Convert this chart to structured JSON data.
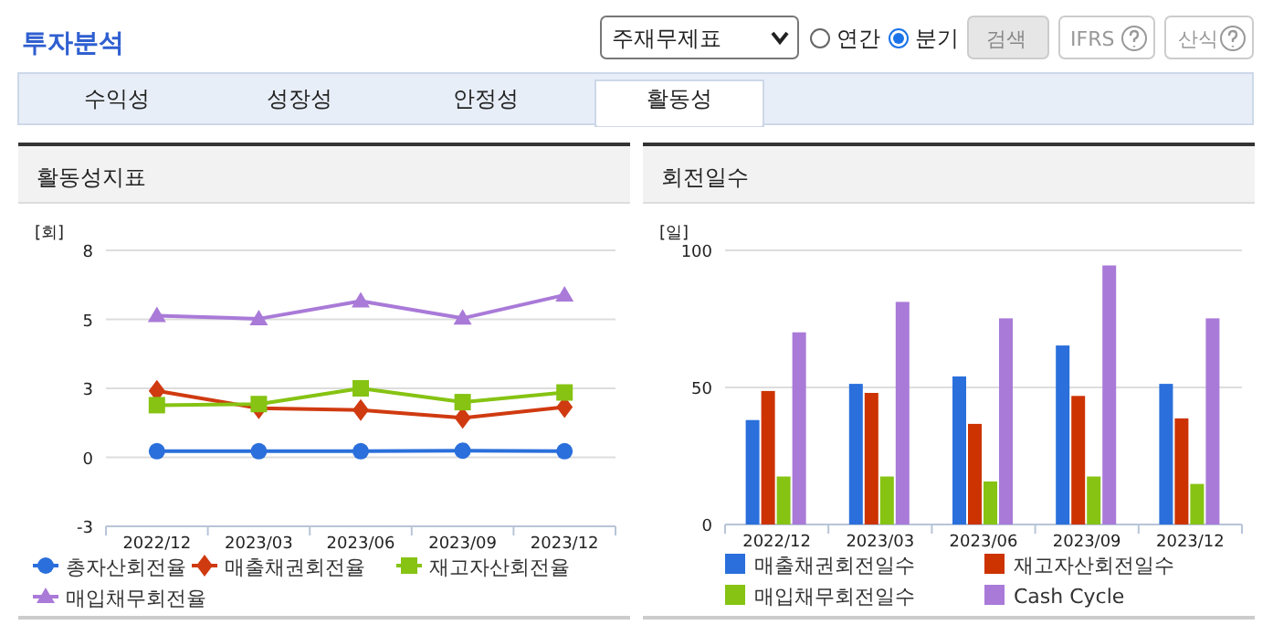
{
  "chart_data": [
    {
      "type": "other",
      "title": "투자분석",
      "annotations": [
        "주재무제표",
        "연간",
        "분기",
        "검색",
        "IFRS",
        "산식",
        "수익성",
        "성장성",
        "안정성",
        "활동성"
      ]
    },
    {
      "type": "line",
      "title": "활동성지표",
      "ylabel": "[회]",
      "categories": [
        "2022/12",
        "2023/03",
        "2023/06",
        "2023/09",
        "2023/12"
      ],
      "ylim": [
        -2.5,
        7.5
      ],
      "yticks": [
        {
          "value": -2.5,
          "label": "-3"
        },
        0,
        {
          "value": 2.5,
          "label": "3"
        },
        5,
        {
          "value": 7.5,
          "label": "8"
        }
      ],
      "grid": "y",
      "legend": "bottom",
      "series": [
        {
          "name": "총자산회전율",
          "color": "#2a6fdb",
          "marker": "circle",
          "values": [
            0.22,
            0.22,
            0.22,
            0.24,
            0.22
          ]
        },
        {
          "name": "매출채권회전율",
          "color": "#d03a10",
          "marker": "diamond",
          "values": [
            2.41,
            1.78,
            1.71,
            1.43,
            1.82
          ]
        },
        {
          "name": "재고자산회전율",
          "color": "#86c313",
          "marker": "square",
          "values": [
            1.89,
            1.93,
            2.5,
            2.0,
            2.35
          ]
        },
        {
          "name": "매입채무회전율",
          "color": "#a97ad8",
          "marker": "triangle",
          "values": [
            5.13,
            5.02,
            5.66,
            5.04,
            5.88
          ]
        }
      ]
    },
    {
      "type": "bar",
      "title": "회전일수",
      "ylabel": "[일]",
      "categories": [
        "2022/12",
        "2023/03",
        "2023/06",
        "2023/09",
        "2023/12"
      ],
      "ylim": [
        0,
        100
      ],
      "yticks": [
        0,
        50,
        100
      ],
      "grid": "y",
      "legend": "bottom",
      "series": [
        {
          "name": "매출채권회전일수",
          "color": "#2a6fdb",
          "values": [
            38.1,
            51.3,
            54.0,
            65.3,
            51.3
          ]
        },
        {
          "name": "재고자산회전일수",
          "color": "#cc3300",
          "values": [
            48.7,
            48.0,
            36.7,
            46.9,
            38.7
          ]
        },
        {
          "name": "매입채무회전일수",
          "color": "#86c313",
          "values": [
            17.5,
            17.5,
            15.7,
            17.5,
            14.8
          ]
        },
        {
          "name": "Cash Cycle",
          "color": "#a97ad8",
          "values": [
            70.1,
            81.2,
            75.2,
            94.5,
            75.2
          ]
        }
      ]
    }
  ]
}
